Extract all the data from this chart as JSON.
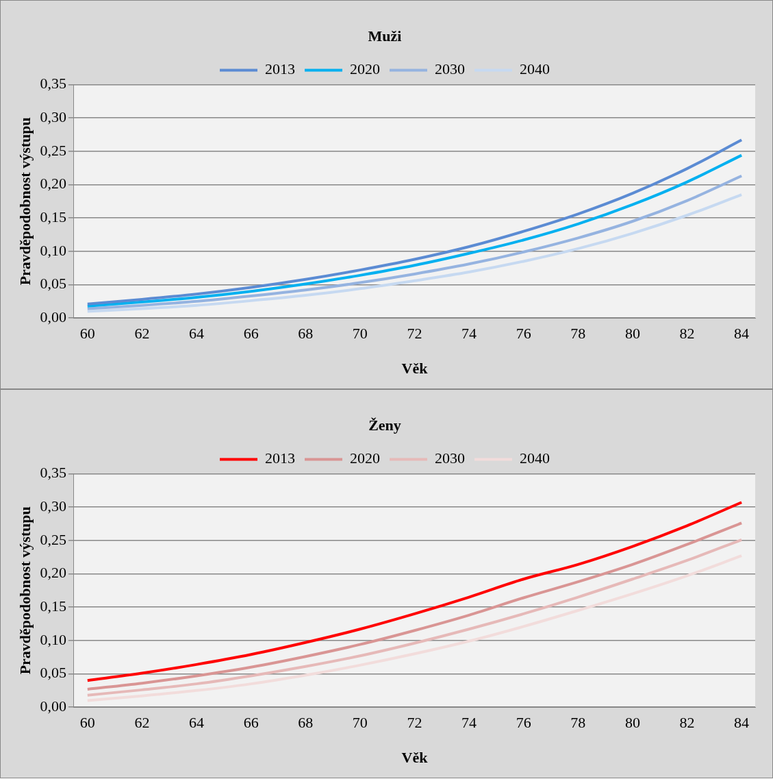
{
  "chart_data": [
    {
      "type": "line",
      "title": "Muži",
      "xlabel": "Věk",
      "ylabel": "Pravděpodobnost výstupu",
      "x": [
        60,
        62,
        64,
        66,
        68,
        70,
        72,
        74,
        76,
        78,
        80,
        82,
        84
      ],
      "xlim": [
        59.5,
        84.5
      ],
      "xticks": [
        60,
        62,
        64,
        66,
        68,
        70,
        72,
        74,
        76,
        78,
        80,
        82,
        84
      ],
      "ylim": [
        0,
        0.35
      ],
      "yticks": [
        {
          "value": 0,
          "label": "0,00"
        },
        {
          "value": 0.05,
          "label": "0,05"
        },
        {
          "value": 0.1,
          "label": "0,10"
        },
        {
          "value": 0.15,
          "label": "0,15"
        },
        {
          "value": 0.2,
          "label": "0,20"
        },
        {
          "value": 0.25,
          "label": "0,25"
        },
        {
          "value": 0.3,
          "label": "0,30"
        },
        {
          "value": 0.35,
          "label": "0,35"
        }
      ],
      "grid": "y",
      "legend": "top",
      "marker": "none",
      "line_style": "solid",
      "series": [
        {
          "name": "2013",
          "color": "#5b8bd3",
          "values": [
            0.021,
            0.028,
            0.036,
            0.046,
            0.058,
            0.072,
            0.088,
            0.107,
            0.13,
            0.156,
            0.187,
            0.224,
            0.267
          ]
        },
        {
          "name": "2020",
          "color": "#00b0f0",
          "values": [
            0.018,
            0.024,
            0.031,
            0.04,
            0.051,
            0.064,
            0.079,
            0.097,
            0.117,
            0.141,
            0.17,
            0.204,
            0.244
          ]
        },
        {
          "name": "2030",
          "color": "#95b3e0",
          "values": [
            0.014,
            0.019,
            0.025,
            0.033,
            0.042,
            0.053,
            0.066,
            0.081,
            0.099,
            0.12,
            0.145,
            0.176,
            0.213
          ]
        },
        {
          "name": "2040",
          "color": "#c6d9f1",
          "values": [
            0.01,
            0.014,
            0.019,
            0.026,
            0.034,
            0.044,
            0.056,
            0.069,
            0.085,
            0.104,
            0.127,
            0.154,
            0.185
          ]
        }
      ]
    },
    {
      "type": "line",
      "title": "Ženy",
      "xlabel": "Věk",
      "ylabel": "Pravděpodobnost výstupu",
      "x": [
        60,
        62,
        64,
        66,
        68,
        70,
        72,
        74,
        76,
        78,
        80,
        82,
        84
      ],
      "xlim": [
        59.5,
        84.5
      ],
      "xticks": [
        60,
        62,
        64,
        66,
        68,
        70,
        72,
        74,
        76,
        78,
        80,
        82,
        84
      ],
      "ylim": [
        0,
        0.35
      ],
      "yticks": [
        {
          "value": 0,
          "label": "0,00"
        },
        {
          "value": 0.05,
          "label": "0,05"
        },
        {
          "value": 0.1,
          "label": "0,10"
        },
        {
          "value": 0.15,
          "label": "0,15"
        },
        {
          "value": 0.2,
          "label": "0,20"
        },
        {
          "value": 0.25,
          "label": "0,25"
        },
        {
          "value": 0.3,
          "label": "0,30"
        },
        {
          "value": 0.35,
          "label": "0,35"
        }
      ],
      "grid": "y",
      "legend": "top",
      "marker": "none",
      "line_style": "solid",
      "series": [
        {
          "name": "2013",
          "color": "#ff0000",
          "values": [
            0.04,
            0.051,
            0.064,
            0.079,
            0.097,
            0.117,
            0.14,
            0.165,
            0.192,
            0.214,
            0.241,
            0.272,
            0.307
          ]
        },
        {
          "name": "2020",
          "color": "#d99594",
          "values": [
            0.027,
            0.036,
            0.047,
            0.06,
            0.076,
            0.094,
            0.115,
            0.138,
            0.164,
            0.188,
            0.214,
            0.244,
            0.276
          ]
        },
        {
          "name": "2030",
          "color": "#e6b9b8",
          "values": [
            0.018,
            0.026,
            0.035,
            0.047,
            0.061,
            0.077,
            0.096,
            0.117,
            0.14,
            0.165,
            0.192,
            0.22,
            0.251
          ]
        },
        {
          "name": "2040",
          "color": "#f2dcdb",
          "values": [
            0.01,
            0.017,
            0.025,
            0.035,
            0.048,
            0.063,
            0.08,
            0.099,
            0.121,
            0.145,
            0.17,
            0.197,
            0.227
          ]
        }
      ]
    }
  ]
}
